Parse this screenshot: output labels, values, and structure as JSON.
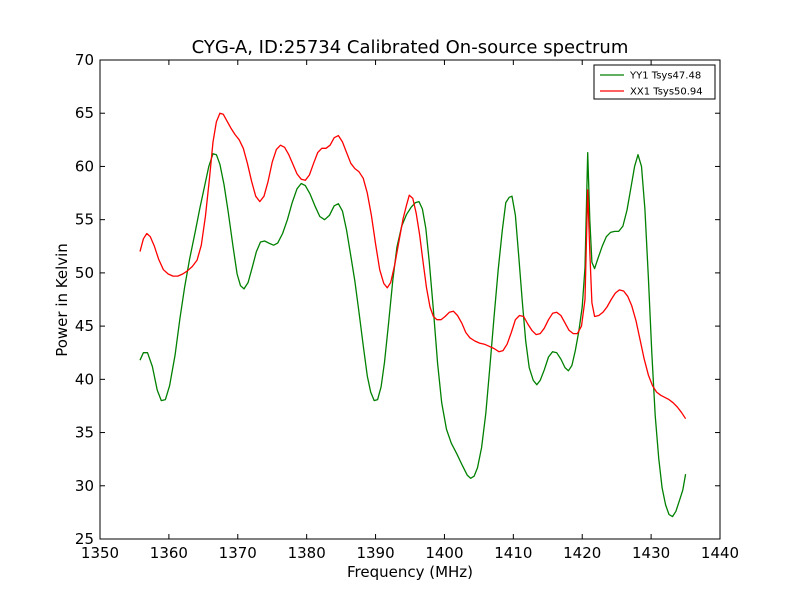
{
  "chart_data": {
    "type": "line",
    "title": "CYG-A, ID:25734 Calibrated On-source spectrum",
    "xlabel": "Frequency (MHz)",
    "ylabel": "Power in Kelvin",
    "xlim": [
      1350,
      1440
    ],
    "ylim": [
      25,
      70
    ],
    "xticks": [
      1350,
      1360,
      1370,
      1380,
      1390,
      1400,
      1410,
      1420,
      1430,
      1440
    ],
    "yticks": [
      25,
      30,
      35,
      40,
      45,
      50,
      55,
      60,
      65,
      70
    ],
    "grid": false,
    "legend_position": "top-right",
    "series": [
      {
        "name": "YY1 Tsys47.48",
        "color": "#008000",
        "points": [
          [
            1355.8,
            41.8
          ],
          [
            1356.3,
            42.5
          ],
          [
            1356.9,
            42.5
          ],
          [
            1357.6,
            41.2
          ],
          [
            1358.3,
            39.0
          ],
          [
            1358.9,
            38.0
          ],
          [
            1359.5,
            38.1
          ],
          [
            1360.1,
            39.4
          ],
          [
            1360.9,
            42.3
          ],
          [
            1361.6,
            45.7
          ],
          [
            1362.3,
            48.7
          ],
          [
            1363.0,
            51.3
          ],
          [
            1363.8,
            53.8
          ],
          [
            1364.5,
            56.1
          ],
          [
            1365.2,
            58.2
          ],
          [
            1365.8,
            60.0
          ],
          [
            1366.4,
            61.2
          ],
          [
            1366.9,
            61.1
          ],
          [
            1367.4,
            60.2
          ],
          [
            1368.0,
            58.3
          ],
          [
            1368.6,
            55.8
          ],
          [
            1369.3,
            52.5
          ],
          [
            1369.9,
            49.9
          ],
          [
            1370.4,
            48.8
          ],
          [
            1370.9,
            48.5
          ],
          [
            1371.5,
            49.1
          ],
          [
            1372.1,
            50.5
          ],
          [
            1372.7,
            52.0
          ],
          [
            1373.3,
            52.9
          ],
          [
            1373.9,
            53.0
          ],
          [
            1374.5,
            52.8
          ],
          [
            1375.2,
            52.6
          ],
          [
            1375.8,
            52.8
          ],
          [
            1376.5,
            53.7
          ],
          [
            1377.2,
            55.0
          ],
          [
            1377.9,
            56.6
          ],
          [
            1378.6,
            57.9
          ],
          [
            1379.2,
            58.4
          ],
          [
            1379.8,
            58.2
          ],
          [
            1380.5,
            57.4
          ],
          [
            1381.2,
            56.3
          ],
          [
            1381.9,
            55.3
          ],
          [
            1382.6,
            55.0
          ],
          [
            1383.3,
            55.4
          ],
          [
            1384.0,
            56.3
          ],
          [
            1384.6,
            56.5
          ],
          [
            1385.2,
            55.8
          ],
          [
            1385.8,
            54.0
          ],
          [
            1386.4,
            51.6
          ],
          [
            1387.0,
            49.2
          ],
          [
            1387.6,
            46.3
          ],
          [
            1388.2,
            43.2
          ],
          [
            1388.8,
            40.3
          ],
          [
            1389.3,
            38.8
          ],
          [
            1389.8,
            38.0
          ],
          [
            1390.3,
            38.1
          ],
          [
            1390.8,
            39.3
          ],
          [
            1391.3,
            41.6
          ],
          [
            1391.9,
            45.3
          ],
          [
            1392.5,
            49.3
          ],
          [
            1393.1,
            52.4
          ],
          [
            1393.8,
            54.4
          ],
          [
            1394.5,
            55.5
          ],
          [
            1395.2,
            56.2
          ],
          [
            1395.8,
            56.6
          ],
          [
            1396.3,
            56.7
          ],
          [
            1396.8,
            56.0
          ],
          [
            1397.3,
            54.2
          ],
          [
            1397.8,
            51.0
          ],
          [
            1398.4,
            46.5
          ],
          [
            1399.0,
            41.5
          ],
          [
            1399.6,
            37.8
          ],
          [
            1400.3,
            35.3
          ],
          [
            1401.0,
            34.0
          ],
          [
            1401.8,
            33.0
          ],
          [
            1402.6,
            31.9
          ],
          [
            1403.3,
            31.0
          ],
          [
            1403.8,
            30.7
          ],
          [
            1404.3,
            30.9
          ],
          [
            1404.8,
            31.7
          ],
          [
            1405.4,
            33.6
          ],
          [
            1406.0,
            36.8
          ],
          [
            1406.6,
            41.2
          ],
          [
            1407.2,
            45.8
          ],
          [
            1407.8,
            50.3
          ],
          [
            1408.4,
            54.0
          ],
          [
            1408.9,
            56.6
          ],
          [
            1409.4,
            57.1
          ],
          [
            1409.8,
            57.2
          ],
          [
            1410.3,
            55.4
          ],
          [
            1410.8,
            51.5
          ],
          [
            1411.3,
            47.3
          ],
          [
            1411.8,
            43.6
          ],
          [
            1412.3,
            41.1
          ],
          [
            1412.9,
            39.9
          ],
          [
            1413.4,
            39.5
          ],
          [
            1413.9,
            39.9
          ],
          [
            1414.5,
            40.9
          ],
          [
            1415.1,
            42.1
          ],
          [
            1415.7,
            42.6
          ],
          [
            1416.3,
            42.5
          ],
          [
            1416.9,
            41.9
          ],
          [
            1417.5,
            41.1
          ],
          [
            1418.0,
            40.8
          ],
          [
            1418.5,
            41.3
          ],
          [
            1419.0,
            42.7
          ],
          [
            1419.5,
            44.5
          ],
          [
            1420.0,
            46.8
          ],
          [
            1420.4,
            50.5
          ],
          [
            1420.8,
            61.3
          ],
          [
            1421.1,
            55.0
          ],
          [
            1421.4,
            51.0
          ],
          [
            1421.8,
            50.4
          ],
          [
            1422.3,
            51.4
          ],
          [
            1422.9,
            52.5
          ],
          [
            1423.5,
            53.4
          ],
          [
            1424.1,
            53.8
          ],
          [
            1424.7,
            53.9
          ],
          [
            1425.3,
            53.9
          ],
          [
            1425.9,
            54.4
          ],
          [
            1426.5,
            55.9
          ],
          [
            1427.1,
            58.1
          ],
          [
            1427.6,
            60.0
          ],
          [
            1428.1,
            61.1
          ],
          [
            1428.6,
            60.0
          ],
          [
            1429.1,
            56.0
          ],
          [
            1429.6,
            49.5
          ],
          [
            1430.1,
            42.5
          ],
          [
            1430.6,
            36.6
          ],
          [
            1431.1,
            32.6
          ],
          [
            1431.6,
            29.8
          ],
          [
            1432.1,
            28.2
          ],
          [
            1432.6,
            27.3
          ],
          [
            1433.1,
            27.1
          ],
          [
            1433.6,
            27.6
          ],
          [
            1434.1,
            28.6
          ],
          [
            1434.6,
            29.6
          ],
          [
            1435.0,
            31.1
          ]
        ]
      },
      {
        "name": "XX1 Tsys50.94",
        "color": "#ff0000",
        "points": [
          [
            1355.8,
            52.0
          ],
          [
            1356.3,
            53.2
          ],
          [
            1356.8,
            53.7
          ],
          [
            1357.3,
            53.4
          ],
          [
            1357.9,
            52.5
          ],
          [
            1358.5,
            51.3
          ],
          [
            1359.2,
            50.3
          ],
          [
            1359.9,
            49.9
          ],
          [
            1360.6,
            49.7
          ],
          [
            1361.3,
            49.7
          ],
          [
            1362.0,
            49.9
          ],
          [
            1362.7,
            50.2
          ],
          [
            1363.4,
            50.6
          ],
          [
            1364.1,
            51.2
          ],
          [
            1364.7,
            52.6
          ],
          [
            1365.3,
            55.3
          ],
          [
            1365.9,
            58.9
          ],
          [
            1366.4,
            62.3
          ],
          [
            1366.9,
            64.2
          ],
          [
            1367.4,
            65.0
          ],
          [
            1367.9,
            64.9
          ],
          [
            1368.4,
            64.3
          ],
          [
            1369.0,
            63.6
          ],
          [
            1369.6,
            63.0
          ],
          [
            1370.2,
            62.5
          ],
          [
            1370.8,
            61.7
          ],
          [
            1371.4,
            60.3
          ],
          [
            1372.0,
            58.6
          ],
          [
            1372.6,
            57.2
          ],
          [
            1373.2,
            56.7
          ],
          [
            1373.8,
            57.2
          ],
          [
            1374.4,
            58.6
          ],
          [
            1375.0,
            60.4
          ],
          [
            1375.6,
            61.6
          ],
          [
            1376.2,
            62.0
          ],
          [
            1376.8,
            61.8
          ],
          [
            1377.4,
            61.1
          ],
          [
            1378.0,
            60.2
          ],
          [
            1378.6,
            59.3
          ],
          [
            1379.2,
            58.8
          ],
          [
            1379.8,
            58.7
          ],
          [
            1380.4,
            59.2
          ],
          [
            1381.0,
            60.3
          ],
          [
            1381.6,
            61.3
          ],
          [
            1382.2,
            61.7
          ],
          [
            1382.8,
            61.7
          ],
          [
            1383.4,
            62.0
          ],
          [
            1384.0,
            62.7
          ],
          [
            1384.6,
            62.9
          ],
          [
            1385.2,
            62.3
          ],
          [
            1385.8,
            61.3
          ],
          [
            1386.4,
            60.3
          ],
          [
            1387.0,
            59.8
          ],
          [
            1387.6,
            59.5
          ],
          [
            1388.2,
            58.9
          ],
          [
            1388.8,
            57.5
          ],
          [
            1389.4,
            55.4
          ],
          [
            1390.0,
            52.7
          ],
          [
            1390.6,
            50.3
          ],
          [
            1391.2,
            49.0
          ],
          [
            1391.7,
            48.6
          ],
          [
            1392.2,
            49.1
          ],
          [
            1392.8,
            50.8
          ],
          [
            1393.4,
            53.0
          ],
          [
            1394.0,
            55.1
          ],
          [
            1394.5,
            56.4
          ],
          [
            1394.9,
            57.3
          ],
          [
            1395.4,
            57.0
          ],
          [
            1395.9,
            55.6
          ],
          [
            1396.4,
            53.6
          ],
          [
            1396.9,
            51.0
          ],
          [
            1397.4,
            48.6
          ],
          [
            1397.9,
            46.8
          ],
          [
            1398.4,
            45.9
          ],
          [
            1398.9,
            45.6
          ],
          [
            1399.5,
            45.6
          ],
          [
            1400.1,
            45.9
          ],
          [
            1400.7,
            46.3
          ],
          [
            1401.3,
            46.4
          ],
          [
            1401.9,
            46.0
          ],
          [
            1402.5,
            45.3
          ],
          [
            1403.1,
            44.4
          ],
          [
            1403.7,
            43.9
          ],
          [
            1404.4,
            43.6
          ],
          [
            1405.1,
            43.4
          ],
          [
            1405.8,
            43.3
          ],
          [
            1406.5,
            43.1
          ],
          [
            1407.2,
            42.9
          ],
          [
            1407.9,
            42.6
          ],
          [
            1408.5,
            42.7
          ],
          [
            1409.1,
            43.3
          ],
          [
            1409.7,
            44.4
          ],
          [
            1410.3,
            45.6
          ],
          [
            1410.9,
            46.0
          ],
          [
            1411.5,
            45.9
          ],
          [
            1412.1,
            45.2
          ],
          [
            1412.7,
            44.6
          ],
          [
            1413.3,
            44.2
          ],
          [
            1413.9,
            44.3
          ],
          [
            1414.5,
            44.8
          ],
          [
            1415.1,
            45.6
          ],
          [
            1415.7,
            46.2
          ],
          [
            1416.3,
            46.3
          ],
          [
            1416.9,
            46.0
          ],
          [
            1417.5,
            45.3
          ],
          [
            1418.1,
            44.6
          ],
          [
            1418.7,
            44.3
          ],
          [
            1419.3,
            44.3
          ],
          [
            1419.9,
            45.0
          ],
          [
            1420.4,
            47.5
          ],
          [
            1420.8,
            57.8
          ],
          [
            1421.1,
            52.0
          ],
          [
            1421.4,
            47.2
          ],
          [
            1421.8,
            45.9
          ],
          [
            1422.4,
            46.0
          ],
          [
            1423.0,
            46.3
          ],
          [
            1423.6,
            46.8
          ],
          [
            1424.2,
            47.5
          ],
          [
            1424.8,
            48.1
          ],
          [
            1425.4,
            48.4
          ],
          [
            1426.0,
            48.3
          ],
          [
            1426.6,
            47.8
          ],
          [
            1427.2,
            46.9
          ],
          [
            1427.8,
            45.5
          ],
          [
            1428.4,
            43.7
          ],
          [
            1429.0,
            41.9
          ],
          [
            1429.6,
            40.4
          ],
          [
            1430.2,
            39.4
          ],
          [
            1430.8,
            38.8
          ],
          [
            1431.4,
            38.5
          ],
          [
            1432.0,
            38.3
          ],
          [
            1432.6,
            38.1
          ],
          [
            1433.2,
            37.8
          ],
          [
            1433.8,
            37.4
          ],
          [
            1434.4,
            36.9
          ],
          [
            1435.0,
            36.3
          ]
        ]
      }
    ]
  }
}
